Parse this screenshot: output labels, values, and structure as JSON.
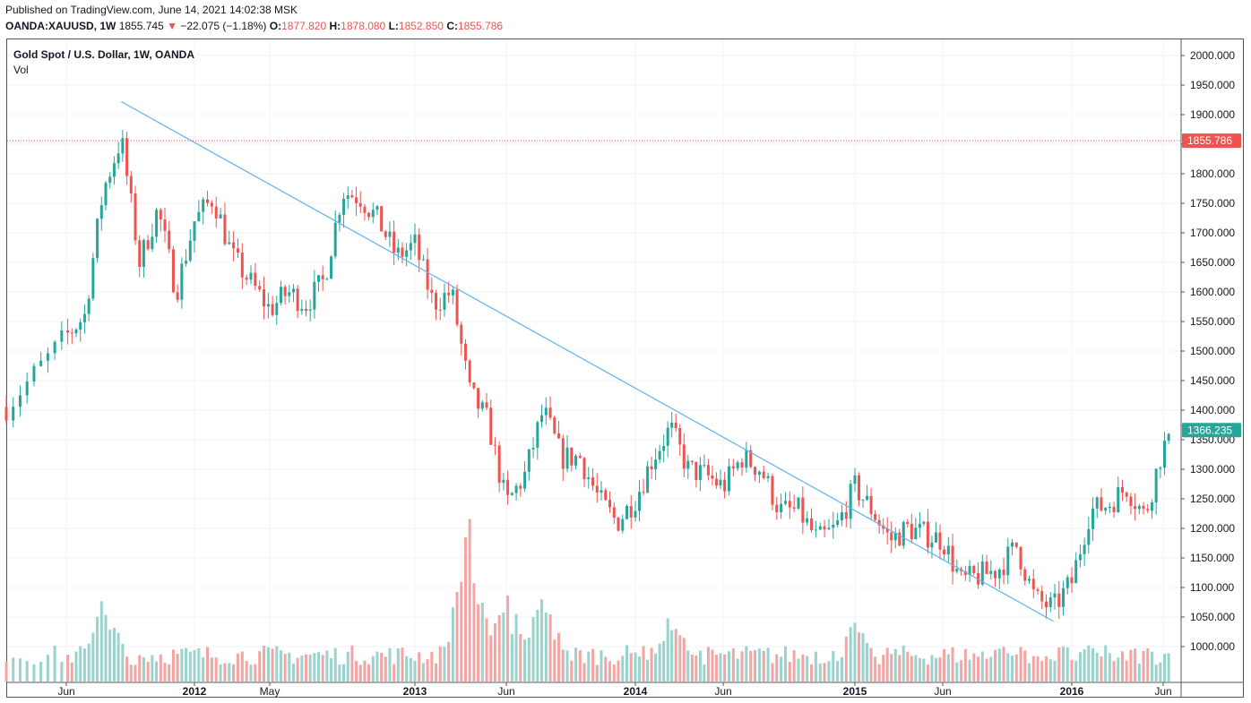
{
  "header": {
    "published": "Published on TradingView.com, June 14, 2021 14:02:38 MSK",
    "symbol": "OANDA:XAUUSD, 1W",
    "last": "1855.745",
    "change_arrow": "▼",
    "change": "−22.075 (−1.18%)",
    "o_label": "O:",
    "o": "1877.820",
    "h_label": "H:",
    "h": "1878.080",
    "l_label": "L:",
    "l": "1852.850",
    "c_label": "C:",
    "c": "1855.786"
  },
  "legend": {
    "title": "Gold Spot / U.S. Dollar, 1W, OANDA",
    "volume": "Vol"
  },
  "colors": {
    "up": "#26a69a",
    "down": "#ef5350",
    "up_vol": "#9ad3cd",
    "down_vol": "#f4a5a3",
    "trendline": "#5db3f0",
    "grid": "#f0f3fa"
  },
  "chart_data": {
    "type": "candlestick",
    "interval": "1W",
    "y_axis": {
      "ticks": [
        2000,
        1950,
        1900,
        1850,
        1800,
        1750,
        1700,
        1650,
        1600,
        1550,
        1500,
        1450,
        1400,
        1350,
        1300,
        1250,
        1200,
        1150,
        1100,
        1050,
        1000
      ],
      "tick_labels": [
        "2000.000",
        "1950.000",
        "1900.000",
        "1850.000",
        "1800.000",
        "1750.000",
        "1700.000",
        "1650.000",
        "1600.000",
        "1550.000",
        "1500.000",
        "1450.000",
        "1400.000",
        "1350.000",
        "1300.000",
        "1250.000",
        "1200.000",
        "1150.000",
        "1100.000",
        "1050.000",
        "1000.000"
      ],
      "range": [
        982,
        2020
      ]
    },
    "x_axis": {
      "ticks": [
        {
          "label": "Jun",
          "date": "2011-06",
          "bold": false
        },
        {
          "label": "2012",
          "date": "2012-01",
          "bold": true
        },
        {
          "label": "May",
          "date": "2012-05",
          "bold": false
        },
        {
          "label": "2013",
          "date": "2013-01",
          "bold": true
        },
        {
          "label": "Jun",
          "date": "2013-06",
          "bold": false
        },
        {
          "label": "2014",
          "date": "2014-01",
          "bold": true
        },
        {
          "label": "Jun",
          "date": "2014-06",
          "bold": false
        },
        {
          "label": "2015",
          "date": "2015-01",
          "bold": true
        },
        {
          "label": "Jun",
          "date": "2015-06",
          "bold": false
        },
        {
          "label": "2016",
          "date": "2016-01",
          "bold": true
        },
        {
          "label": "Jun",
          "date": "2016-06",
          "bold": false
        }
      ]
    },
    "price_labels": [
      {
        "value": 1855.786,
        "text": "1855.786",
        "color": "#ef5350",
        "dotted_line": true
      },
      {
        "value": 1366.235,
        "text": "1366.235",
        "color": "#26a69a",
        "dotted_line": false
      }
    ],
    "trendline": {
      "start": {
        "date": "2011-09",
        "price": 1922
      },
      "end": {
        "date": "2015-12",
        "price": 1043
      }
    },
    "anchors": [
      {
        "date": "2011-04",
        "price": 1405
      },
      {
        "date": "2011-06",
        "price": 1525
      },
      {
        "date": "2011-07",
        "price": 1560
      },
      {
        "date": "2011-08",
        "price": 1770
      },
      {
        "date": "2011-09",
        "price": 1860
      },
      {
        "date": "2011-10",
        "price": 1650
      },
      {
        "date": "2011-11",
        "price": 1740
      },
      {
        "date": "2011-12",
        "price": 1600
      },
      {
        "date": "2012-01",
        "price": 1720
      },
      {
        "date": "2012-02",
        "price": 1760
      },
      {
        "date": "2012-03",
        "price": 1660
      },
      {
        "date": "2012-05",
        "price": 1570
      },
      {
        "date": "2012-06",
        "price": 1600
      },
      {
        "date": "2012-07",
        "price": 1580
      },
      {
        "date": "2012-08",
        "price": 1620
      },
      {
        "date": "2012-09",
        "price": 1770
      },
      {
        "date": "2012-10",
        "price": 1760
      },
      {
        "date": "2012-11",
        "price": 1720
      },
      {
        "date": "2012-12",
        "price": 1660
      },
      {
        "date": "2013-01",
        "price": 1680
      },
      {
        "date": "2013-02",
        "price": 1580
      },
      {
        "date": "2013-03",
        "price": 1600
      },
      {
        "date": "2013-04",
        "price": 1430
      },
      {
        "date": "2013-05",
        "price": 1380
      },
      {
        "date": "2013-06",
        "price": 1240
      },
      {
        "date": "2013-07",
        "price": 1290
      },
      {
        "date": "2013-08",
        "price": 1400
      },
      {
        "date": "2013-09",
        "price": 1320
      },
      {
        "date": "2013-10",
        "price": 1320
      },
      {
        "date": "2013-11",
        "price": 1250
      },
      {
        "date": "2013-12",
        "price": 1210
      },
      {
        "date": "2014-01",
        "price": 1250
      },
      {
        "date": "2014-02",
        "price": 1320
      },
      {
        "date": "2014-03",
        "price": 1370
      },
      {
        "date": "2014-04",
        "price": 1300
      },
      {
        "date": "2014-05",
        "price": 1290
      },
      {
        "date": "2014-06",
        "price": 1270
      },
      {
        "date": "2014-07",
        "price": 1320
      },
      {
        "date": "2014-08",
        "price": 1300
      },
      {
        "date": "2014-09",
        "price": 1230
      },
      {
        "date": "2014-10",
        "price": 1230
      },
      {
        "date": "2014-11",
        "price": 1180
      },
      {
        "date": "2014-12",
        "price": 1200
      },
      {
        "date": "2015-01",
        "price": 1270
      },
      {
        "date": "2015-02",
        "price": 1230
      },
      {
        "date": "2015-03",
        "price": 1180
      },
      {
        "date": "2015-04",
        "price": 1200
      },
      {
        "date": "2015-05",
        "price": 1190
      },
      {
        "date": "2015-06",
        "price": 1180
      },
      {
        "date": "2015-07",
        "price": 1110
      },
      {
        "date": "2015-08",
        "price": 1120
      },
      {
        "date": "2015-09",
        "price": 1130
      },
      {
        "date": "2015-10",
        "price": 1170
      },
      {
        "date": "2015-11",
        "price": 1080
      },
      {
        "date": "2015-12",
        "price": 1065
      },
      {
        "date": "2016-01",
        "price": 1110
      },
      {
        "date": "2016-02",
        "price": 1230
      },
      {
        "date": "2016-03",
        "price": 1240
      },
      {
        "date": "2016-04",
        "price": 1270
      },
      {
        "date": "2016-05",
        "price": 1220
      },
      {
        "date": "2016-06",
        "price": 1340
      }
    ],
    "volume_spikes": [
      {
        "date": "2011-08",
        "rel": 0.55
      },
      {
        "date": "2013-04",
        "rel": 1.0
      },
      {
        "date": "2013-06",
        "rel": 0.6
      },
      {
        "date": "2013-08",
        "rel": 0.58
      },
      {
        "date": "2014-03",
        "rel": 0.45
      },
      {
        "date": "2015-01",
        "rel": 0.38
      },
      {
        "date": "2015-10",
        "rel": 0.22
      },
      {
        "date": "2016-02",
        "rel": 0.2
      }
    ]
  }
}
